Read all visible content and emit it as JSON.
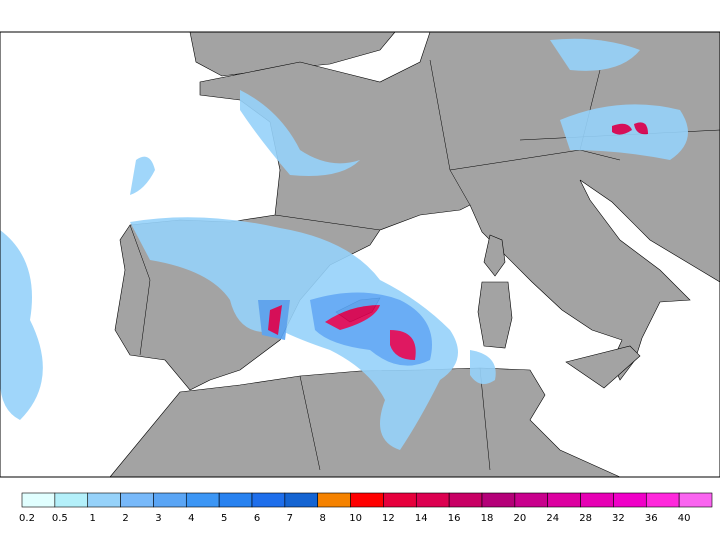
{
  "legend": {
    "levels": [
      0.2,
      0.5,
      1,
      2,
      3,
      4,
      5,
      6,
      7,
      8,
      10,
      12,
      14,
      16,
      18,
      20,
      24,
      28,
      32,
      36,
      40
    ],
    "colors": [
      "#e1ffff",
      "#b4f0fa",
      "#96d2fa",
      "#78b9fa",
      "#5aa5f5",
      "#3c96f5",
      "#2882f0",
      "#1e6eeb",
      "#1464d2",
      "#f58200",
      "#ff0000",
      "#e6003c",
      "#dc0050",
      "#c80064",
      "#b40078",
      "#c8008c",
      "#dc00a0",
      "#e600b4",
      "#f000c8",
      "#ff28dc",
      "#fa64f0"
    ]
  }
}
